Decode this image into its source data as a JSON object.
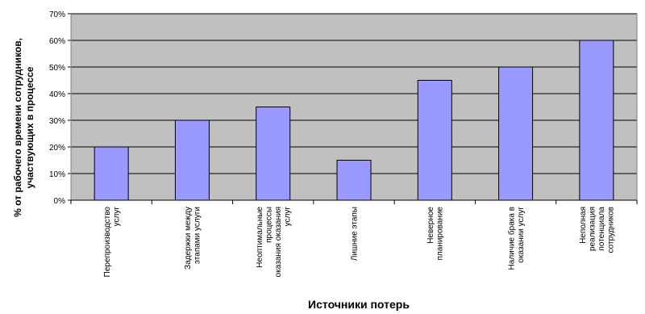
{
  "chart_data": {
    "type": "bar",
    "categories": [
      [
        "Перепроизводство",
        "услуг"
      ],
      [
        "Задержки между",
        "этапами услуги"
      ],
      [
        "Неоптимальные",
        "процессы",
        "оказания оказания",
        "услуг"
      ],
      [
        "Лишние этапы"
      ],
      [
        "Неверное",
        "планирование"
      ],
      [
        "Наличие брака в",
        "оказании услуг"
      ],
      [
        "Неполная",
        "реализация",
        "потенциала",
        "сотрудников"
      ]
    ],
    "values": [
      20,
      30,
      35,
      15,
      45,
      50,
      60
    ],
    "ylim": [
      0,
      70
    ],
    "yticks": [
      "0%",
      "10%",
      "20%",
      "30%",
      "40%",
      "50%",
      "60%",
      "70%"
    ],
    "xlabel": "Источники потерь",
    "ylabel": [
      "% от рабочего времени сотрудников,",
      "участвующих в процессе"
    ],
    "grid": true,
    "colors": {
      "plot_bg": "#c0c0c0",
      "bar_fill": "#9999ff",
      "bar_stroke": "#000000",
      "grid": "#000000"
    }
  }
}
